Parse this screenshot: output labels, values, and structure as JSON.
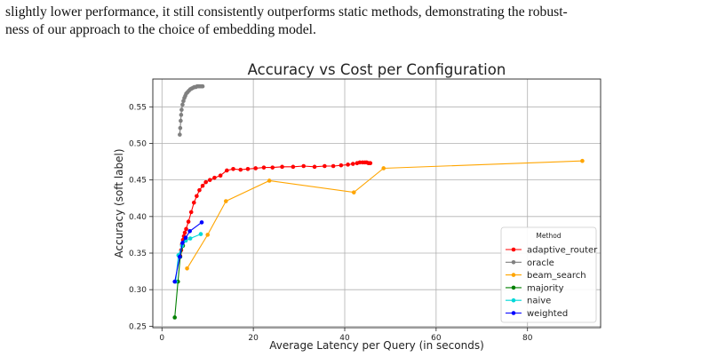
{
  "paragraph": {
    "line1": "slightly lower performance, it still consistently outperforms static methods, demonstrating the robust-",
    "line2": "ness of our approach to the choice of embedding model."
  },
  "chart_data": {
    "type": "line",
    "title": "Accuracy vs Cost per Configuration",
    "xlabel": "Average Latency per Query (in seconds)",
    "ylabel": "Accuracy (soft label)",
    "xlim": [
      -2,
      96
    ],
    "ylim": [
      0.248,
      0.588
    ],
    "xticks": [
      0,
      20,
      40,
      60,
      80
    ],
    "yticks": [
      0.25,
      0.3,
      0.35,
      0.4,
      0.45,
      0.5,
      0.55
    ],
    "ytick_labels": [
      "0.25",
      "0.30",
      "0.35",
      "0.40",
      "0.45",
      "0.50",
      "0.55"
    ],
    "xtick_labels": [
      "0",
      "20",
      "40",
      "60",
      "80"
    ],
    "grid": true,
    "legend": {
      "title": "Method",
      "placement": "lower-right"
    },
    "series": [
      {
        "name": "adaptive_router",
        "color": "#ff0000",
        "x": [
          4.0,
          4.2,
          4.4,
          4.6,
          4.8,
          5.0,
          5.3,
          5.8,
          6.4,
          7.0,
          7.6,
          8.2,
          8.9,
          9.6,
          10.5,
          11.5,
          12.8,
          14.2,
          15.6,
          17.2,
          18.8,
          20.5,
          22.3,
          24.2,
          26.3,
          28.7,
          31.0,
          33.4,
          35.6,
          37.5,
          39.2,
          40.7,
          41.8,
          42.7,
          43.3,
          43.9,
          44.4,
          44.8,
          45.2,
          45.6
        ],
        "y": [
          0.346,
          0.354,
          0.362,
          0.368,
          0.373,
          0.378,
          0.383,
          0.393,
          0.406,
          0.419,
          0.428,
          0.436,
          0.442,
          0.447,
          0.45,
          0.453,
          0.456,
          0.463,
          0.465,
          0.464,
          0.465,
          0.466,
          0.467,
          0.467,
          0.468,
          0.468,
          0.469,
          0.468,
          0.469,
          0.469,
          0.47,
          0.471,
          0.472,
          0.473,
          0.474,
          0.474,
          0.474,
          0.474,
          0.473,
          0.473
        ]
      },
      {
        "name": "oracle",
        "color": "#808080",
        "x": [
          3.9,
          4.0,
          4.1,
          4.2,
          4.3,
          4.5,
          4.7,
          4.9,
          5.1,
          5.3,
          5.6,
          5.9,
          6.2,
          6.5,
          6.8,
          7.1,
          7.4,
          7.7,
          8.0,
          8.3,
          8.6,
          8.9
        ],
        "y": [
          0.512,
          0.521,
          0.531,
          0.539,
          0.546,
          0.553,
          0.558,
          0.562,
          0.565,
          0.568,
          0.57,
          0.572,
          0.574,
          0.575,
          0.576,
          0.577,
          0.577,
          0.578,
          0.578,
          0.578,
          0.578,
          0.578
        ]
      },
      {
        "name": "beam_search",
        "color": "#ffa500",
        "x": [
          5.5,
          10.0,
          14.0,
          23.5,
          42.0,
          48.5,
          92.0
        ],
        "y": [
          0.329,
          0.375,
          0.421,
          0.449,
          0.433,
          0.466,
          0.476
        ]
      },
      {
        "name": "majority",
        "color": "#008000",
        "x": [
          2.8,
          3.5,
          4.0,
          4.6
        ],
        "y": [
          0.262,
          0.311,
          0.345,
          0.36
        ]
      },
      {
        "name": "naive",
        "color": "#00d8d8",
        "x": [
          3.0,
          3.6,
          4.4,
          5.2,
          6.2,
          8.5
        ],
        "y": [
          0.311,
          0.347,
          0.36,
          0.367,
          0.37,
          0.376
        ]
      },
      {
        "name": "weighted",
        "color": "#0000ff",
        "x": [
          2.8,
          3.9,
          4.5,
          5.2,
          6.1,
          8.7
        ],
        "y": [
          0.311,
          0.345,
          0.364,
          0.371,
          0.38,
          0.392
        ]
      }
    ]
  }
}
